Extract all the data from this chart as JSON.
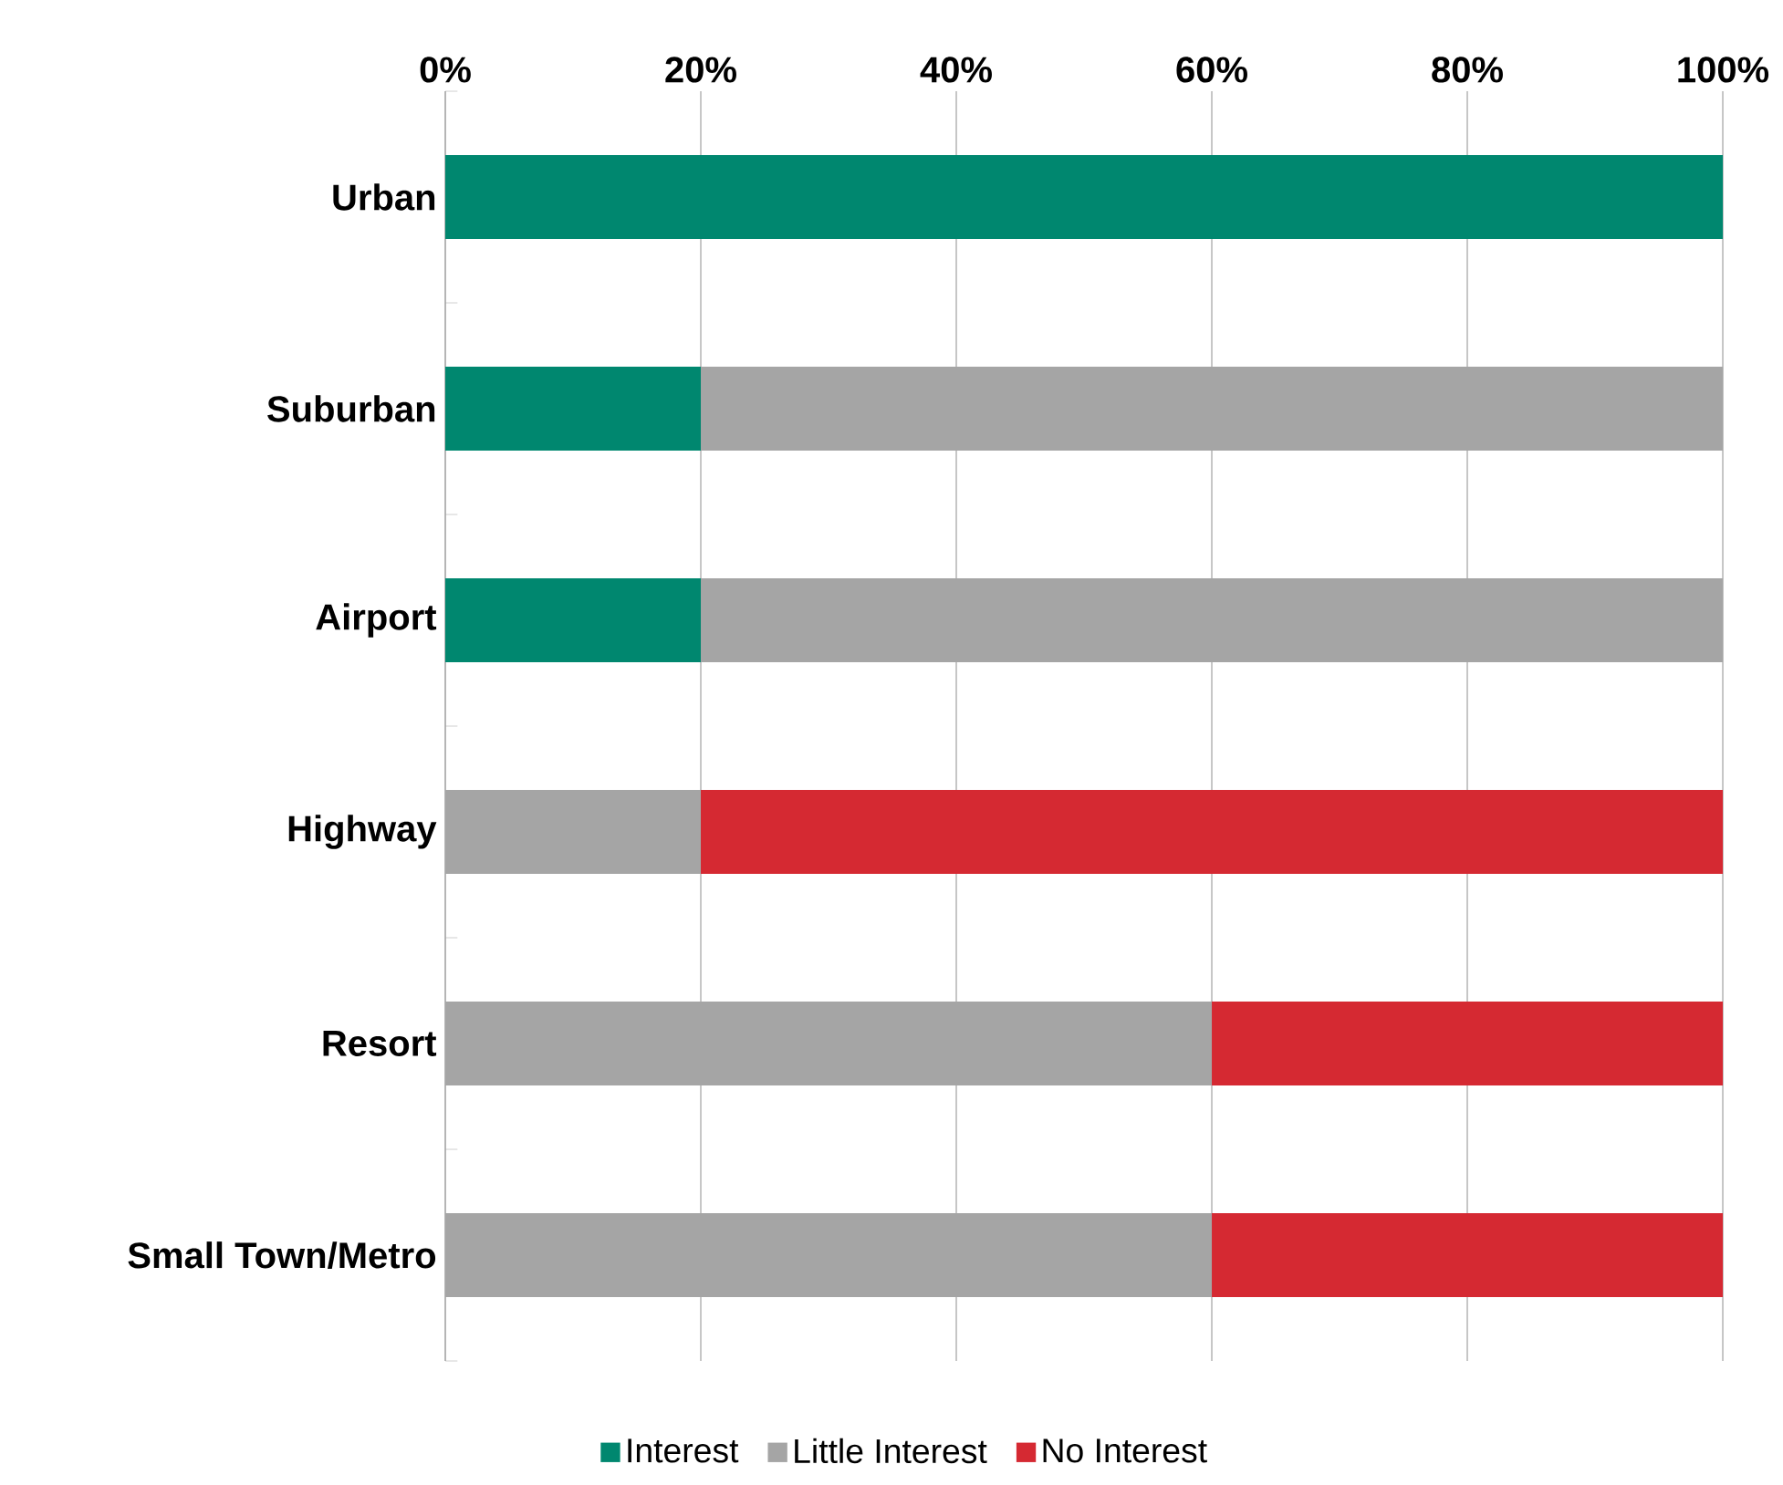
{
  "chart_data": {
    "type": "bar",
    "orientation": "horizontal",
    "stacked": true,
    "categories": [
      "Urban",
      "Suburban",
      "Airport",
      "Highway",
      "Resort",
      "Small Town/Metro"
    ],
    "series": [
      {
        "name": "Interest",
        "color": "#00876f",
        "values": [
          100,
          20,
          20,
          0,
          0,
          0
        ]
      },
      {
        "name": "Little Interest",
        "color": "#a5a5a5",
        "values": [
          0,
          80,
          80,
          20,
          60,
          60
        ]
      },
      {
        "name": "No Interest",
        "color": "#d52932",
        "values": [
          0,
          0,
          0,
          80,
          40,
          40
        ]
      }
    ],
    "xlim": [
      0,
      100
    ],
    "xticks": [
      {
        "value": 0,
        "label": "0%"
      },
      {
        "value": 20,
        "label": "20%"
      },
      {
        "value": 40,
        "label": "40%"
      },
      {
        "value": 60,
        "label": "60%"
      },
      {
        "value": 80,
        "label": "80%"
      },
      {
        "value": 100,
        "label": "100%"
      }
    ],
    "grid": "x",
    "legend": "bottom"
  }
}
